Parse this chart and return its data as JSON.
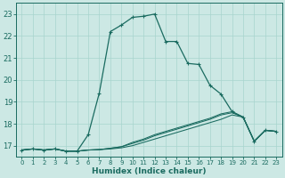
{
  "xlabel": "Humidex (Indice chaleur)",
  "bg_color": "#cce8e4",
  "grid_color": "#a8d4ce",
  "line_color": "#1a6b60",
  "xlim": [
    -0.5,
    23.5
  ],
  "ylim": [
    16.5,
    23.5
  ],
  "yticks": [
    17,
    18,
    19,
    20,
    21,
    22,
    23
  ],
  "xticks": [
    0,
    1,
    2,
    3,
    4,
    5,
    6,
    7,
    8,
    9,
    10,
    11,
    12,
    13,
    14,
    15,
    16,
    17,
    18,
    19,
    20,
    21,
    22,
    23
  ],
  "series_main": {
    "x": [
      0,
      1,
      2,
      3,
      4,
      5,
      6,
      7,
      8,
      9,
      10,
      11,
      12,
      13,
      14,
      15,
      16,
      17,
      18,
      19,
      20,
      21,
      22,
      23
    ],
    "y": [
      16.8,
      16.85,
      16.8,
      16.85,
      16.75,
      16.75,
      17.5,
      19.4,
      22.2,
      22.5,
      22.85,
      22.9,
      23.0,
      21.75,
      21.75,
      20.75,
      20.7,
      19.75,
      19.35,
      18.55,
      18.3,
      17.2,
      17.7,
      17.65
    ]
  },
  "series_flat": [
    [
      16.8,
      16.85,
      16.8,
      16.85,
      16.75,
      16.75,
      16.8,
      16.82,
      16.85,
      16.9,
      17.0,
      17.15,
      17.3,
      17.45,
      17.6,
      17.75,
      17.9,
      18.05,
      18.2,
      18.4,
      18.3,
      17.2,
      17.7,
      17.65
    ],
    [
      16.8,
      16.85,
      16.8,
      16.85,
      16.75,
      16.75,
      16.8,
      16.82,
      16.88,
      16.95,
      17.1,
      17.25,
      17.45,
      17.6,
      17.75,
      17.9,
      18.05,
      18.2,
      18.4,
      18.5,
      18.3,
      17.2,
      17.7,
      17.65
    ],
    [
      16.8,
      16.85,
      16.8,
      16.85,
      16.75,
      16.75,
      16.8,
      16.82,
      16.88,
      16.95,
      17.15,
      17.3,
      17.5,
      17.65,
      17.8,
      17.95,
      18.1,
      18.25,
      18.45,
      18.55,
      18.3,
      17.2,
      17.7,
      17.65
    ]
  ]
}
